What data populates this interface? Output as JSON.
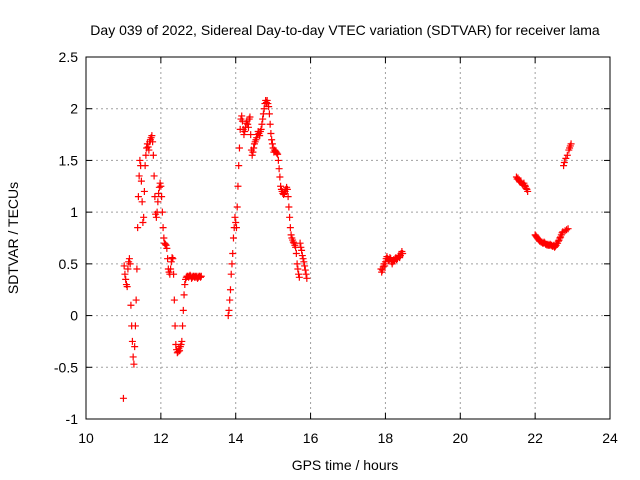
{
  "chart_data": {
    "type": "scatter",
    "title": "Day 039 of 2022, Sidereal Day-to-day VTEC variation (SDTVAR) for receiver lama",
    "xlabel": "GPS time / hours",
    "ylabel": "SDTVAR / TECUs",
    "xlim": [
      10,
      24
    ],
    "ylim": [
      -1,
      2.5
    ],
    "xticks": [
      10,
      12,
      14,
      16,
      18,
      20,
      22,
      24
    ],
    "yticks": [
      -1,
      -0.5,
      0,
      0.5,
      1,
      1.5,
      2,
      2.5
    ],
    "xtick_labels": [
      "10",
      "12",
      "14",
      "16",
      "18",
      "20",
      "22",
      "24"
    ],
    "ytick_labels": [
      "-1",
      "-0.5",
      "0",
      "0.5",
      "1",
      "1.5",
      "2",
      "2.5"
    ],
    "grid": true,
    "marker": "+",
    "color": "#ff0000",
    "series": [
      {
        "name": "SDTVAR",
        "segments": [
          {
            "x": [
              11.0,
              11.02,
              11.04,
              11.06,
              11.08,
              11.1,
              11.12,
              11.14,
              11.16,
              11.18,
              11.2,
              11.22,
              11.24,
              11.26,
              11.28,
              11.3,
              11.32,
              11.34,
              11.36,
              11.38,
              11.4,
              11.42,
              11.44,
              11.46,
              11.48,
              11.5,
              11.52,
              11.54,
              11.56,
              11.58,
              11.6,
              11.62,
              11.64,
              11.66,
              11.68,
              11.7,
              11.72,
              11.74,
              11.76,
              11.78,
              11.8,
              11.82,
              11.84,
              11.86,
              11.88,
              11.9,
              11.92,
              11.94,
              11.96,
              11.98,
              12.0,
              12.02,
              12.04,
              12.06,
              12.08,
              12.1,
              12.12,
              12.14,
              12.16,
              12.18,
              12.2,
              12.22,
              12.24,
              12.26,
              12.28,
              12.3,
              12.32,
              12.34,
              12.36,
              12.38,
              12.4,
              12.42,
              12.44,
              12.46,
              12.48,
              12.5,
              12.52,
              12.54,
              12.56,
              12.58,
              12.6,
              12.62,
              12.64,
              12.66,
              12.68,
              12.7,
              12.72,
              12.74,
              12.76,
              12.78,
              12.8,
              12.82,
              12.84,
              12.86,
              12.88,
              12.9,
              12.92,
              12.94,
              12.96,
              12.98,
              13.0,
              13.02,
              13.04,
              13.06,
              13.08
            ],
            "y": [
              -0.8,
              0.48,
              0.4,
              0.35,
              0.3,
              0.28,
              0.45,
              0.52,
              0.55,
              0.5,
              0.1,
              -0.1,
              -0.25,
              -0.4,
              -0.47,
              -0.3,
              -0.1,
              0.15,
              0.45,
              0.85,
              1.15,
              1.35,
              1.5,
              1.45,
              1.3,
              1.1,
              0.9,
              0.95,
              1.2,
              1.45,
              1.55,
              1.62,
              1.66,
              1.63,
              1.6,
              1.68,
              1.7,
              1.72,
              1.74,
              1.68,
              1.55,
              1.35,
              1.15,
              0.98,
              0.95,
              1.0,
              1.1,
              1.18,
              1.24,
              1.28,
              1.25,
              1.15,
              1.0,
              0.85,
              0.75,
              0.7,
              0.69,
              0.68,
              0.65,
              0.55,
              0.45,
              0.42,
              0.4,
              0.45,
              0.52,
              0.56,
              0.55,
              0.4,
              0.15,
              -0.1,
              -0.28,
              -0.33,
              -0.36,
              -0.35,
              -0.32,
              -0.34,
              -0.3,
              -0.28,
              -0.25,
              -0.1,
              0.05,
              0.2,
              0.3,
              0.35,
              0.37,
              0.38,
              0.38,
              0.37,
              0.38,
              0.39,
              0.38,
              0.36,
              0.37,
              0.38,
              0.38,
              0.37,
              0.38,
              0.37,
              0.38,
              0.36,
              0.37,
              0.38,
              0.38,
              0.37,
              0.38
            ]
          },
          {
            "x": [
              13.8,
              13.82,
              13.84,
              13.86,
              13.88,
              13.9,
              13.92,
              13.94,
              13.96,
              13.98,
              14.0,
              14.02,
              14.04,
              14.06,
              14.08,
              14.1,
              14.12,
              14.14,
              14.16,
              14.18,
              14.2,
              14.22,
              14.24,
              14.26,
              14.28,
              14.3,
              14.32,
              14.34,
              14.36,
              14.38,
              14.4,
              14.42,
              14.44,
              14.46,
              14.48,
              14.5,
              14.52,
              14.54,
              14.56,
              14.58,
              14.6,
              14.62,
              14.64,
              14.66,
              14.68,
              14.7,
              14.72,
              14.74,
              14.76,
              14.78,
              14.8,
              14.82,
              14.84,
              14.86,
              14.88,
              14.9,
              14.92,
              14.94,
              14.96,
              14.98,
              15.0,
              15.02,
              15.04,
              15.06,
              15.08,
              15.1,
              15.12,
              15.14,
              15.16,
              15.18,
              15.2,
              15.22,
              15.24,
              15.26,
              15.28,
              15.3,
              15.32,
              15.34,
              15.36,
              15.38,
              15.4,
              15.42,
              15.44,
              15.46,
              15.48,
              15.5,
              15.52,
              15.54,
              15.56,
              15.58,
              15.6,
              15.62,
              15.64,
              15.66,
              15.68,
              15.7,
              15.72,
              15.74,
              15.76,
              15.78,
              15.8,
              15.82,
              15.84,
              15.86,
              15.88,
              15.9
            ],
            "y": [
              0.0,
              0.05,
              0.15,
              0.25,
              0.4,
              0.5,
              0.6,
              0.75,
              0.85,
              0.95,
              0.9,
              0.85,
              1.05,
              1.25,
              1.45,
              1.62,
              1.8,
              1.9,
              1.93,
              1.88,
              1.8,
              1.75,
              1.78,
              1.82,
              1.86,
              1.88,
              1.85,
              1.82,
              1.9,
              1.92,
              1.75,
              1.6,
              1.55,
              1.58,
              1.62,
              1.66,
              1.68,
              1.7,
              1.72,
              1.75,
              1.78,
              1.76,
              1.74,
              1.78,
              1.8,
              1.85,
              1.9,
              1.95,
              2.0,
              2.05,
              2.08,
              2.06,
              2.08,
              2.05,
              2.02,
              1.95,
              1.85,
              1.76,
              1.7,
              1.66,
              1.62,
              1.58,
              1.6,
              1.59,
              1.58,
              1.57,
              1.56,
              1.5,
              1.42,
              1.34,
              1.25,
              1.22,
              1.2,
              1.18,
              1.17,
              1.18,
              1.2,
              1.22,
              1.24,
              1.22,
              1.15,
              1.05,
              0.95,
              0.85,
              0.78,
              0.75,
              0.73,
              0.71,
              0.7,
              0.68,
              0.66,
              0.6,
              0.5,
              0.45,
              0.4,
              0.37,
              0.7,
              0.66,
              0.63,
              0.58,
              0.55,
              0.52,
              0.48,
              0.44,
              0.4,
              0.36
            ]
          },
          {
            "x": [
              17.88,
              17.9,
              17.92,
              17.94,
              17.96,
              17.98,
              18.0,
              18.02,
              18.04,
              18.06,
              18.08,
              18.1,
              18.12,
              18.14,
              18.16,
              18.18,
              18.2,
              18.22,
              18.24,
              18.26,
              18.28,
              18.3,
              18.32,
              18.34,
              18.36,
              18.38,
              18.4,
              18.42,
              18.44,
              18.46
            ],
            "y": [
              0.45,
              0.42,
              0.44,
              0.47,
              0.5,
              0.48,
              0.52,
              0.55,
              0.57,
              0.55,
              0.53,
              0.54,
              0.56,
              0.55,
              0.52,
              0.5,
              0.52,
              0.54,
              0.53,
              0.55,
              0.56,
              0.54,
              0.55,
              0.57,
              0.58,
              0.56,
              0.58,
              0.6,
              0.62,
              0.6
            ]
          },
          {
            "x": [
              21.5,
              21.52,
              21.54,
              21.56,
              21.58,
              21.6,
              21.62,
              21.64,
              21.66,
              21.68,
              21.7,
              21.72,
              21.74,
              21.76,
              21.78,
              21.8
            ],
            "y": [
              1.34,
              1.32,
              1.33,
              1.31,
              1.3,
              1.29,
              1.3,
              1.28,
              1.27,
              1.26,
              1.28,
              1.26,
              1.25,
              1.23,
              1.22,
              1.2
            ]
          },
          {
            "x": [
              22.0,
              22.02,
              22.04,
              22.06,
              22.08,
              22.1,
              22.12,
              22.14,
              22.16,
              22.18,
              22.2,
              22.22,
              22.24,
              22.26,
              22.28,
              22.3,
              22.32,
              22.34,
              22.36,
              22.38,
              22.4,
              22.42,
              22.44,
              22.46,
              22.48,
              22.5,
              22.52,
              22.54,
              22.56,
              22.58,
              22.6,
              22.62,
              22.64,
              22.66,
              22.68,
              22.7,
              22.72,
              22.74,
              22.76,
              22.78,
              22.8,
              22.82,
              22.84,
              22.86,
              22.88,
              22.9,
              22.92,
              22.94,
              22.96
            ],
            "y": [
              0.78,
              0.77,
              0.76,
              0.75,
              0.74,
              0.73,
              0.72,
              0.72,
              0.71,
              0.71,
              0.7,
              0.7,
              0.71,
              0.7,
              0.69,
              0.69,
              0.68,
              0.69,
              0.68,
              0.68,
              0.69,
              0.68,
              0.68,
              0.67,
              0.67,
              0.68,
              0.66,
              0.67,
              0.68,
              0.7,
              0.7,
              0.72,
              0.73,
              0.75,
              0.76,
              0.78,
              0.8,
              0.81,
              1.45,
              1.48,
              0.82,
              1.52,
              0.83,
              1.55,
              0.84,
              1.6,
              1.62,
              1.64,
              1.66
            ]
          }
        ]
      }
    ]
  }
}
